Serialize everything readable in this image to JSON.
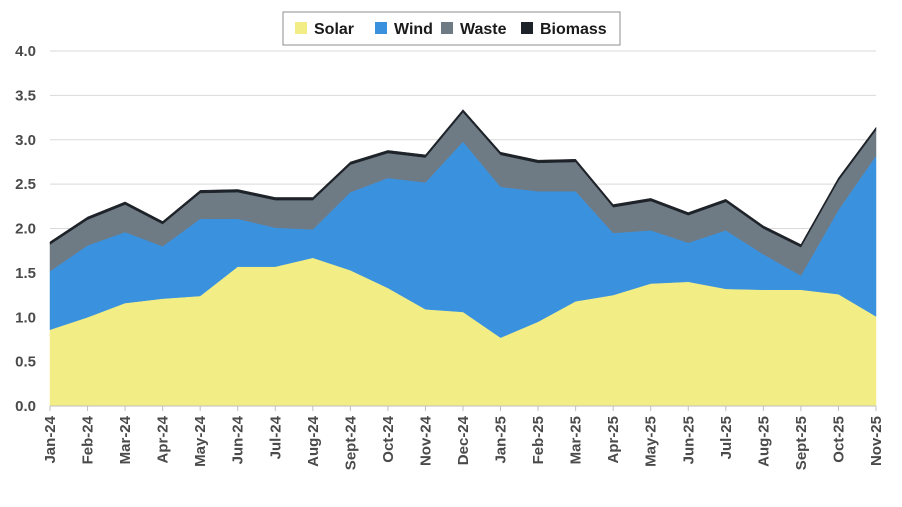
{
  "chart_data": {
    "type": "area",
    "stacked": true,
    "categories": [
      "Jan-24",
      "Feb-24",
      "Mar-24",
      "Apr-24",
      "May-24",
      "Jun-24",
      "Jul-24",
      "Aug-24",
      "Sept-24",
      "Oct-24",
      "Nov-24",
      "Dec-24",
      "Jan-25",
      "Feb-25",
      "Mar-25",
      "Apr-25",
      "May-25",
      "Jun-25",
      "Jul-25",
      "Aug-25",
      "Sept-25",
      "Oct-25",
      "Nov-25"
    ],
    "series": [
      {
        "name": "Solar",
        "color": "#f2ee85",
        "values": [
          0.86,
          1.0,
          1.16,
          1.21,
          1.24,
          1.57,
          1.57,
          1.67,
          1.53,
          1.33,
          1.09,
          1.06,
          0.77,
          0.95,
          1.18,
          1.25,
          1.38,
          1.4,
          1.32,
          1.31,
          1.31,
          1.26,
          1.01
        ]
      },
      {
        "name": "Wind",
        "color": "#3a92df",
        "values": [
          0.66,
          0.81,
          0.8,
          0.59,
          0.87,
          0.54,
          0.44,
          0.32,
          0.88,
          1.24,
          1.43,
          1.92,
          1.7,
          1.47,
          1.24,
          0.7,
          0.6,
          0.44,
          0.66,
          0.4,
          0.16,
          0.95,
          1.81
        ]
      },
      {
        "name": "Waste",
        "color": "#6e7a84",
        "values": [
          0.3,
          0.29,
          0.31,
          0.25,
          0.29,
          0.3,
          0.31,
          0.33,
          0.31,
          0.28,
          0.28,
          0.33,
          0.36,
          0.32,
          0.33,
          0.29,
          0.33,
          0.31,
          0.32,
          0.29,
          0.32,
          0.33,
          0.29
        ]
      },
      {
        "name": "Biomass",
        "color": "#1e2329",
        "values": [
          0.03,
          0.03,
          0.03,
          0.03,
          0.03,
          0.03,
          0.03,
          0.03,
          0.03,
          0.03,
          0.03,
          0.03,
          0.03,
          0.03,
          0.03,
          0.03,
          0.03,
          0.03,
          0.03,
          0.03,
          0.03,
          0.03,
          0.03
        ]
      }
    ],
    "ylim": [
      0,
      4.0
    ],
    "yticks": [
      "0.0",
      "0.5",
      "1.0",
      "1.5",
      "2.0",
      "2.5",
      "3.0",
      "3.5",
      "4.0"
    ],
    "grid": true,
    "legend_position": "top-center",
    "title": "",
    "xlabel": "",
    "ylabel": ""
  }
}
